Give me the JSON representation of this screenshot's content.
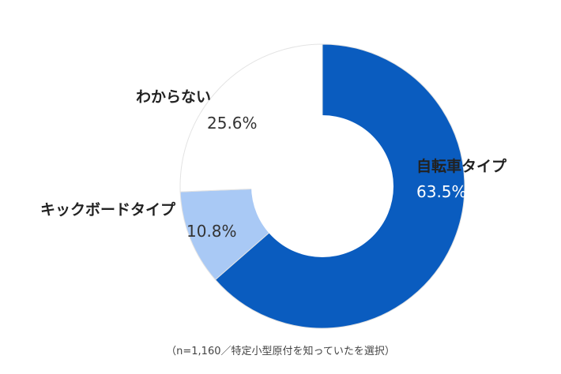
{
  "chart_data": {
    "type": "pie",
    "donut": true,
    "slices": [
      {
        "label": "自転車タイプ",
        "value": 63.5,
        "value_label": "63.5%",
        "color": "#0a5cbf",
        "text_color": "#ffffff"
      },
      {
        "label": "キックボードタイプ",
        "value": 10.8,
        "value_label": "10.8%",
        "color": "#a9c9f5",
        "text_color": "#333333"
      },
      {
        "label": "わからない",
        "value": 25.6,
        "value_label": "25.6%",
        "color": "#ffffff",
        "text_color": "#333333"
      }
    ],
    "start": "12 o'clock",
    "direction": "clockwise"
  },
  "note": "（n=1,160／特定小型原付を知っていたを選択）"
}
